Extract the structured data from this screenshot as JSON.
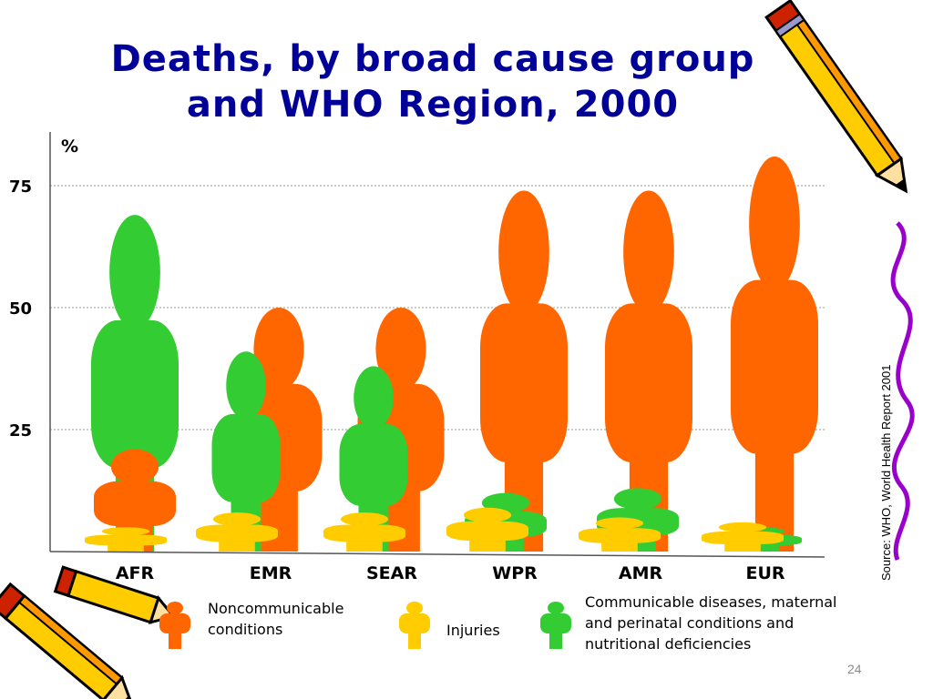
{
  "slide": {
    "title_line1": "Deaths, by broad cause group",
    "title_line2": "and WHO Region, 2000",
    "source": "Source: WHO, World Health Report 2001",
    "page_number": "24"
  },
  "chart_data": {
    "type": "bar",
    "title": "Deaths, by broad cause group and WHO Region, 2000",
    "ylabel": "%",
    "ylim": [
      0,
      80
    ],
    "yticks": [
      25,
      50,
      75
    ],
    "grid": true,
    "categories": [
      "AFR",
      "EMR",
      "SEAR",
      "WPR",
      "AMR",
      "EUR"
    ],
    "series": [
      {
        "name": "Noncommunicable conditions",
        "color": "#ff6600",
        "values": [
          21,
          50,
          50,
          74,
          74,
          81
        ]
      },
      {
        "name": "Communicable diseases, maternal and perinatal conditions and nutritional deficiencies",
        "color": "#33cc33",
        "values": [
          69,
          41,
          38,
          12,
          13,
          5
        ]
      },
      {
        "name": "Injuries",
        "color": "#ffcc00",
        "values": [
          5,
          8,
          8,
          9,
          7,
          6
        ]
      }
    ]
  },
  "legend": {
    "noncommunicable": "Noncommunicable conditions",
    "injuries": "Injuries",
    "communicable": "Communicable diseases, maternal and perinatal conditions and nutritional deficiencies",
    "noncommunicable_lines": [
      "Noncommunicable",
      "conditions"
    ],
    "communicable_lines": [
      "Communicable diseases, maternal",
      "and perinatal conditions and",
      "nutritional deficiencies"
    ]
  },
  "icons": [
    "person-figure-icon",
    "pencil-icon"
  ]
}
